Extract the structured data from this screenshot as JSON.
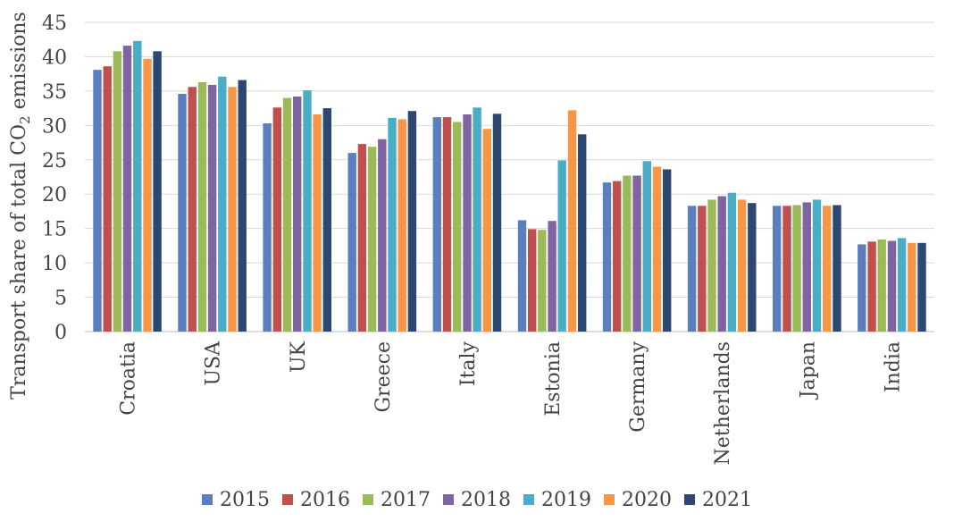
{
  "chart_data": {
    "type": "bar",
    "title": "",
    "ylabel_prefix": "Transport share of total CO",
    "ylabel_sub": "2",
    "ylabel_suffix": " emissions",
    "ylim": [
      0,
      45
    ],
    "yticks": [
      0,
      5,
      10,
      15,
      20,
      25,
      30,
      35,
      40,
      45
    ],
    "grid": true,
    "legend_position": "bottom",
    "categories": [
      "Croatia",
      "USA",
      "UK",
      "Greece",
      "Italy",
      "Estonia",
      "Germany",
      "Netherlands",
      "Japan",
      "India"
    ],
    "series": [
      {
        "name": "2015",
        "color": "#5b7fbe",
        "values": [
          38.1,
          34.6,
          30.3,
          26.0,
          31.2,
          16.2,
          21.7,
          18.3,
          18.3,
          12.7
        ]
      },
      {
        "name": "2016",
        "color": "#c0504d",
        "values": [
          38.6,
          35.6,
          32.6,
          27.3,
          31.2,
          14.9,
          21.9,
          18.3,
          18.3,
          13.1
        ]
      },
      {
        "name": "2017",
        "color": "#9bbb59",
        "values": [
          40.8,
          36.3,
          34.0,
          26.9,
          30.5,
          14.8,
          22.7,
          19.2,
          18.4,
          13.4
        ]
      },
      {
        "name": "2018",
        "color": "#8064a2",
        "values": [
          41.6,
          35.9,
          34.2,
          28.0,
          31.6,
          16.1,
          22.7,
          19.7,
          18.8,
          13.2
        ]
      },
      {
        "name": "2019",
        "color": "#4bacc6",
        "values": [
          42.3,
          37.1,
          35.1,
          31.1,
          32.6,
          24.9,
          24.8,
          20.2,
          19.2,
          13.6
        ]
      },
      {
        "name": "2020",
        "color": "#f79646",
        "values": [
          39.7,
          35.6,
          31.6,
          30.9,
          29.5,
          32.2,
          24.0,
          19.2,
          18.3,
          12.9
        ]
      },
      {
        "name": "2021",
        "color": "#2c4770",
        "values": [
          40.8,
          36.6,
          32.5,
          32.1,
          31.7,
          28.7,
          23.6,
          18.7,
          18.4,
          12.9
        ]
      }
    ]
  }
}
